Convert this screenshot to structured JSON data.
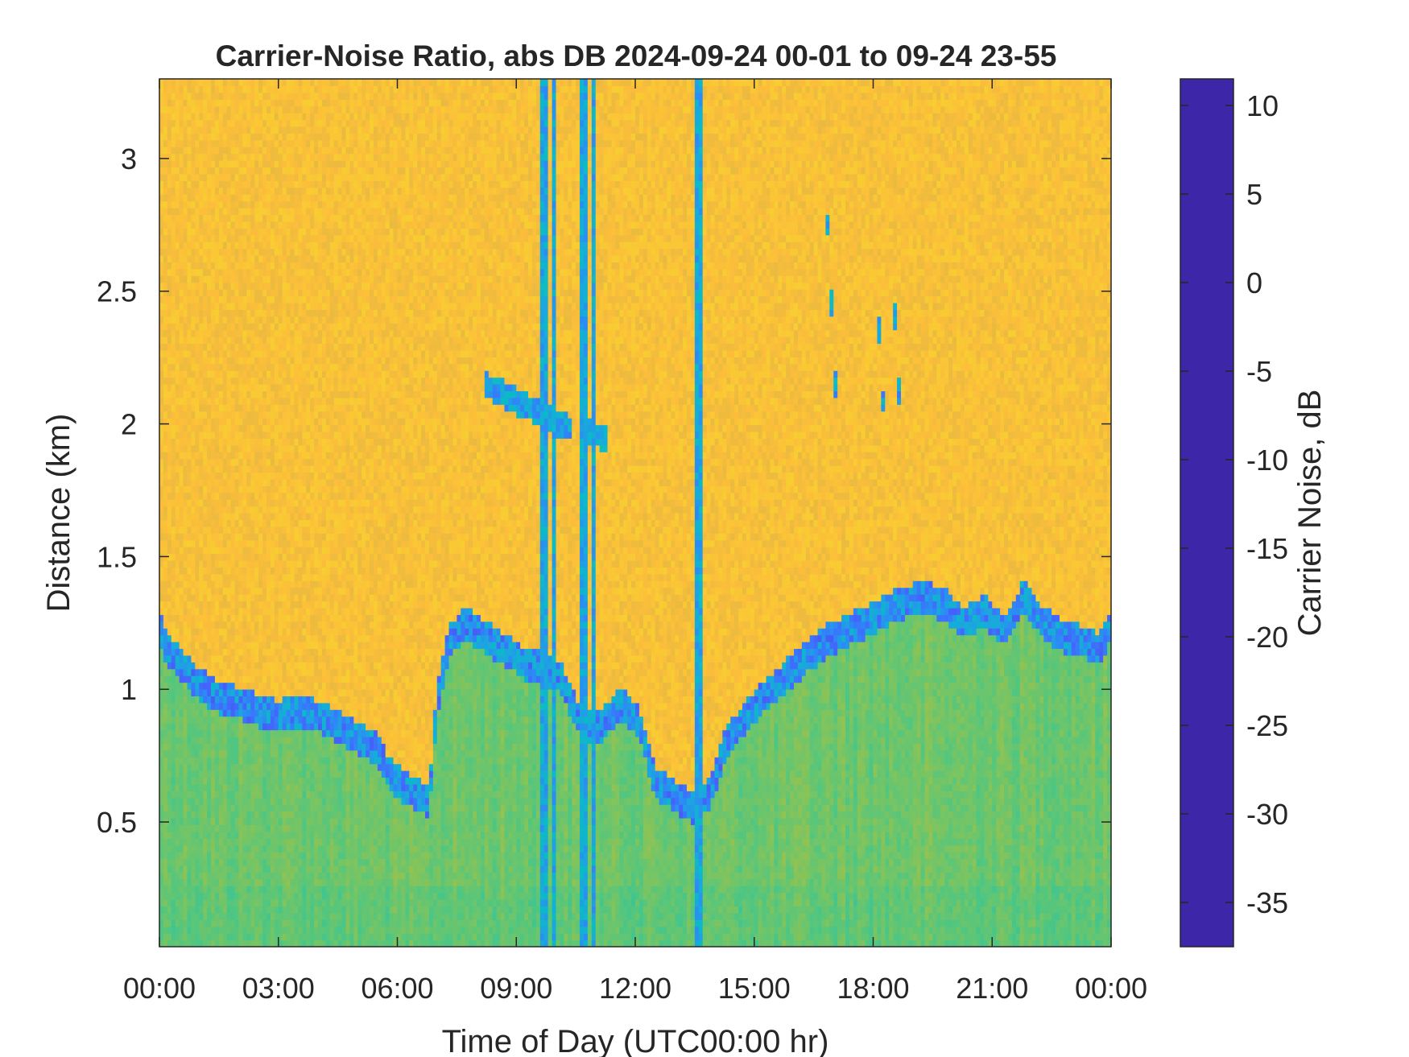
{
  "chart_data": {
    "type": "heatmap",
    "title": "Carrier-Noise Ratio, abs DB 2024-09-24 00-01 to 09-24 23-55",
    "xlabel": "Time of Day (UTC00:00 hr)",
    "ylabel": "Distance (km)",
    "colorbar_label": "Carrier Noise, dB",
    "xlim": [
      0,
      24
    ],
    "ylim": [
      0.03,
      3.3
    ],
    "clim": [
      -37.5,
      11.5
    ],
    "x_ticks": [
      0,
      3,
      6,
      9,
      12,
      15,
      18,
      21,
      24
    ],
    "x_tick_labels": [
      "00:00",
      "03:00",
      "06:00",
      "09:00",
      "12:00",
      "15:00",
      "18:00",
      "21:00",
      "00:00"
    ],
    "y_ticks": [
      0.5,
      1,
      1.5,
      2,
      2.5,
      3
    ],
    "y_tick_labels": [
      "0.5",
      "1",
      "1.5",
      "2",
      "2.5",
      "3"
    ],
    "colorbar_ticks": [
      10,
      5,
      0,
      -5,
      -10,
      -15,
      -20,
      -25,
      -30,
      -35
    ],
    "colorbar_tick_labels": [
      "10",
      "5",
      "0",
      "-5",
      "-10",
      "-15",
      "-20",
      "-25",
      "-30",
      "-35"
    ],
    "colormap": [
      "#3E26A8",
      "#4743E1",
      "#4367FD",
      "#2E87F7",
      "#1CA6DF",
      "#0BBAC8",
      "#2CC3A6",
      "#52C67F",
      "#84C45B",
      "#B7BD3C",
      "#E0B842",
      "#FCBE3A",
      "#F6D52D",
      "#F9FB15"
    ],
    "background_level_db": -30,
    "aerosol_level_db": -17,
    "boundary_layer_top_km": {
      "x": [
        0,
        0.2,
        0.5,
        1,
        1.5,
        2,
        2.5,
        3,
        3.5,
        4,
        4.5,
        5,
        5.5,
        5.8,
        6.3,
        6.8,
        7,
        7.3,
        7.7,
        8.2,
        8.7,
        9.2,
        9.6,
        10.1,
        10.6,
        11.1,
        11.6,
        12.1,
        12.5,
        13,
        13.5,
        13.9,
        14.3,
        14.8,
        15.3,
        15.8,
        16.3,
        16.8,
        17.3,
        17.8,
        18.3,
        18.8,
        19.3,
        19.8,
        20.3,
        20.8,
        21.3,
        21.8,
        22.3,
        22.8,
        23.3,
        23.7,
        24
      ],
      "y": [
        1.25,
        1.15,
        1.1,
        1.02,
        0.97,
        0.95,
        0.92,
        0.9,
        0.92,
        0.9,
        0.86,
        0.82,
        0.77,
        0.68,
        0.62,
        0.58,
        0.95,
        1.18,
        1.25,
        1.2,
        1.15,
        1.1,
        1.08,
        1.05,
        0.88,
        0.85,
        0.95,
        0.88,
        0.65,
        0.6,
        0.55,
        0.62,
        0.8,
        0.9,
        0.98,
        1.05,
        1.12,
        1.18,
        1.22,
        1.25,
        1.3,
        1.33,
        1.35,
        1.32,
        1.25,
        1.3,
        1.22,
        1.35,
        1.25,
        1.2,
        1.18,
        1.15,
        1.25
      ]
    },
    "elevated_layers": [
      {
        "x_start": 8.2,
        "x_end": 10.4,
        "y_start": 2.15,
        "y_end": 1.98,
        "note": ""
      },
      {
        "x_start": 10.7,
        "x_end": 11.35,
        "y_start": 1.98,
        "y_end": 1.94,
        "note": ""
      },
      {
        "x_start": 16.85,
        "x_end": 17.1,
        "y_start": 2.75,
        "y_end": 2.0,
        "note": ""
      },
      {
        "x_start": 18.1,
        "x_end": 18.3,
        "y_start": 2.5,
        "y_end": 1.95,
        "note": ""
      },
      {
        "x_start": 18.55,
        "x_end": 18.7,
        "y_start": 2.4,
        "y_end": 2.0,
        "note": ""
      }
    ],
    "vertical_stripes_hr": [
      9.7,
      9.97,
      10.7,
      10.95,
      13.6
    ],
    "grid": false,
    "legend": "colorbar-right"
  }
}
